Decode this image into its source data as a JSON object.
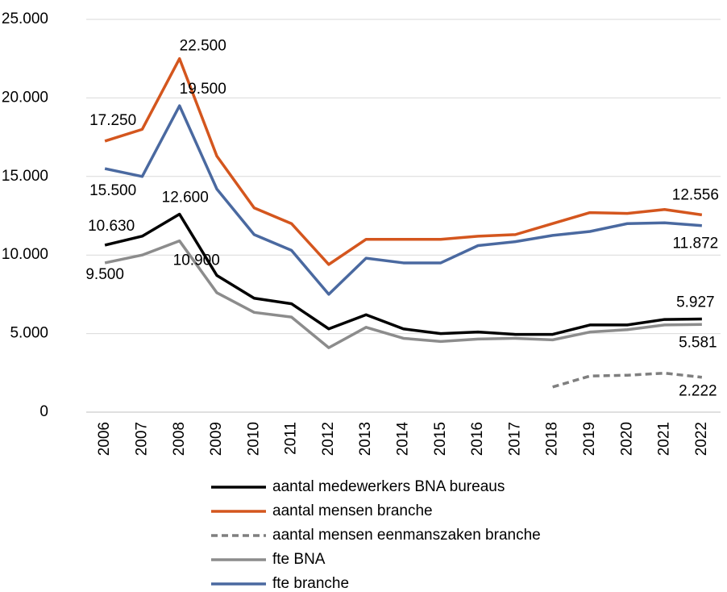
{
  "chart_data": {
    "type": "line",
    "categories": [
      "2006",
      "2007",
      "2008",
      "2009",
      "2010",
      "2011",
      "2012",
      "2013",
      "2014",
      "2015",
      "2016",
      "2017",
      "2018",
      "2019",
      "2020",
      "2021",
      "2022"
    ],
    "series": [
      {
        "name": "aantal medewerkers BNA bureaus",
        "color": "#000000",
        "values": [
          10630,
          11200,
          12600,
          8700,
          7250,
          6900,
          5300,
          6200,
          5300,
          5000,
          5100,
          4950,
          4950,
          5550,
          5550,
          5900,
          5927
        ],
        "value_labels": [
          "10.630",
          null,
          "12.600",
          null,
          null,
          null,
          null,
          null,
          null,
          null,
          null,
          null,
          null,
          null,
          null,
          null,
          "5.927"
        ]
      },
      {
        "name": "aantal mensen branche",
        "color": "#d4561e",
        "values": [
          17250,
          18000,
          22500,
          16300,
          13000,
          12000,
          9400,
          11000,
          11000,
          11000,
          11200,
          11300,
          12000,
          12700,
          12650,
          12900,
          12556
        ],
        "value_labels": [
          "17.250",
          null,
          "22.500",
          null,
          null,
          null,
          null,
          null,
          null,
          null,
          null,
          null,
          null,
          null,
          null,
          null,
          "12.556"
        ]
      },
      {
        "name": "aantal mensen eenmanszaken branche",
        "color": "#7f7f7f",
        "dashed": true,
        "values": [
          null,
          null,
          null,
          null,
          null,
          null,
          null,
          null,
          null,
          null,
          null,
          null,
          1600,
          2300,
          2350,
          2480,
          2222
        ],
        "value_labels": [
          null,
          null,
          null,
          null,
          null,
          null,
          null,
          null,
          null,
          null,
          null,
          null,
          null,
          null,
          null,
          null,
          "2.222"
        ]
      },
      {
        "name": "fte BNA",
        "color": "#8c8c8c",
        "values": [
          9500,
          10000,
          10900,
          7600,
          6350,
          6050,
          4100,
          5400,
          4700,
          4500,
          4650,
          4700,
          4600,
          5100,
          5250,
          5550,
          5581
        ],
        "value_labels": [
          "9.500",
          null,
          "10.900",
          null,
          null,
          null,
          null,
          null,
          null,
          null,
          null,
          null,
          null,
          null,
          null,
          null,
          "5.581"
        ]
      },
      {
        "name": "fte branche",
        "color": "#4a69a0",
        "values": [
          15500,
          15000,
          19500,
          14200,
          11300,
          10300,
          7500,
          9800,
          9500,
          9500,
          10600,
          10850,
          11250,
          11500,
          12000,
          12050,
          11872
        ],
        "value_labels": [
          "15.500",
          null,
          "19.500",
          null,
          null,
          null,
          null,
          null,
          null,
          null,
          null,
          null,
          null,
          null,
          null,
          null,
          "11.872"
        ]
      }
    ],
    "ylim": [
      0,
      25000
    ],
    "yticks": [
      0,
      {
        "value": 5000,
        "label": "5.000"
      },
      {
        "value": 10000,
        "label": "10.000"
      },
      {
        "value": 15000,
        "label": "15.000"
      },
      {
        "value": 20000,
        "label": "20.000"
      },
      {
        "value": 25000,
        "label": "25.000"
      }
    ],
    "grid": true,
    "legend": "bottom"
  }
}
